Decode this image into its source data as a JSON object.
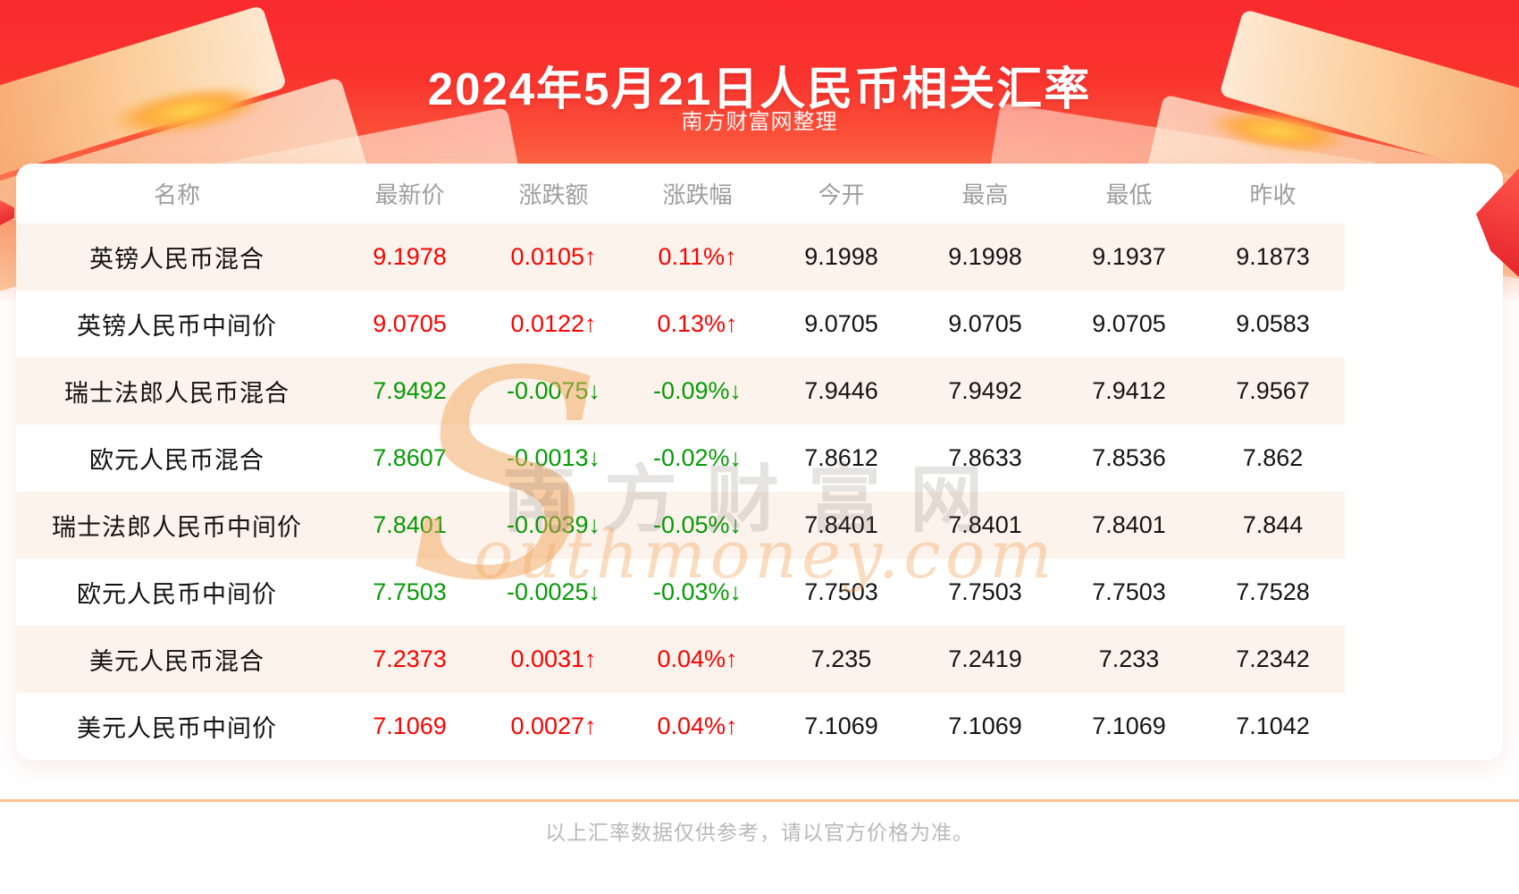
{
  "page": {
    "title": "2024年5月21日人民币相关汇率",
    "subtitle": "南方财富网整理",
    "footer_note": "以上汇率数据仅供参考，请以官方价格为准。",
    "watermark_s": "S",
    "watermark_cn": "南方财富网",
    "watermark_en": "outhmoney.com"
  },
  "colors": {
    "hero_red_top": "#fa2a2e",
    "hero_red_bottom": "#fd9a70",
    "up_red": "#f80400",
    "down_green": "#079a07",
    "row_alt_bg": "#fdf3ed",
    "header_text": "#9e9e9e",
    "divider_orange": "#f6c28e"
  },
  "table": {
    "columns": [
      "名称",
      "最新价",
      "涨跌额",
      "涨跌幅",
      "今开",
      "最高",
      "最低",
      "昨收"
    ],
    "rows": [
      {
        "name": "英镑人民币混合",
        "latest": "9.1978",
        "change": "0.0105↑",
        "change_pct": "0.11%↑",
        "open": "9.1998",
        "high": "9.1998",
        "low": "9.1937",
        "prev_close": "9.1873",
        "direction": "up"
      },
      {
        "name": "英镑人民币中间价",
        "latest": "9.0705",
        "change": "0.0122↑",
        "change_pct": "0.13%↑",
        "open": "9.0705",
        "high": "9.0705",
        "low": "9.0705",
        "prev_close": "9.0583",
        "direction": "up"
      },
      {
        "name": "瑞士法郎人民币混合",
        "latest": "7.9492",
        "change": "-0.0075↓",
        "change_pct": "-0.09%↓",
        "open": "7.9446",
        "high": "7.9492",
        "low": "7.9412",
        "prev_close": "7.9567",
        "direction": "down"
      },
      {
        "name": "欧元人民币混合",
        "latest": "7.8607",
        "change": "-0.0013↓",
        "change_pct": "-0.02%↓",
        "open": "7.8612",
        "high": "7.8633",
        "low": "7.8536",
        "prev_close": "7.862",
        "direction": "down"
      },
      {
        "name": "瑞士法郎人民币中间价",
        "latest": "7.8401",
        "change": "-0.0039↓",
        "change_pct": "-0.05%↓",
        "open": "7.8401",
        "high": "7.8401",
        "low": "7.8401",
        "prev_close": "7.844",
        "direction": "down"
      },
      {
        "name": "欧元人民币中间价",
        "latest": "7.7503",
        "change": "-0.0025↓",
        "change_pct": "-0.03%↓",
        "open": "7.7503",
        "high": "7.7503",
        "low": "7.7503",
        "prev_close": "7.7528",
        "direction": "down"
      },
      {
        "name": "美元人民币混合",
        "latest": "7.2373",
        "change": "0.0031↑",
        "change_pct": "0.04%↑",
        "open": "7.235",
        "high": "7.2419",
        "low": "7.233",
        "prev_close": "7.2342",
        "direction": "up"
      },
      {
        "name": "美元人民币中间价",
        "latest": "7.1069",
        "change": "0.0027↑",
        "change_pct": "0.04%↑",
        "open": "7.1069",
        "high": "7.1069",
        "low": "7.1069",
        "prev_close": "7.1042",
        "direction": "up"
      }
    ]
  },
  "chart_data": {
    "type": "table",
    "title": "2024年5月21日人民币相关汇率",
    "columns": [
      "名称",
      "最新价",
      "涨跌额",
      "涨跌幅",
      "今开",
      "最高",
      "最低",
      "昨收"
    ],
    "rows": [
      [
        "英镑人民币混合",
        "9.1978",
        "0.0105↑",
        "0.11%↑",
        "9.1998",
        "9.1998",
        "9.1937",
        "9.1873"
      ],
      [
        "英镑人民币中间价",
        "9.0705",
        "0.0122↑",
        "0.13%↑",
        "9.0705",
        "9.0705",
        "9.0705",
        "9.0583"
      ],
      [
        "瑞士法郎人民币混合",
        "7.9492",
        "-0.0075↓",
        "-0.09%↓",
        "7.9446",
        "7.9492",
        "7.9412",
        "7.9567"
      ],
      [
        "欧元人民币混合",
        "7.8607",
        "-0.0013↓",
        "-0.02%↓",
        "7.8612",
        "7.8633",
        "7.8536",
        "7.862"
      ],
      [
        "瑞士法郎人民币中间价",
        "7.8401",
        "-0.0039↓",
        "-0.05%↓",
        "7.8401",
        "7.8401",
        "7.8401",
        "7.844"
      ],
      [
        "欧元人民币中间价",
        "7.7503",
        "-0.0025↓",
        "-0.03%↓",
        "7.7503",
        "7.7503",
        "7.7503",
        "7.7528"
      ],
      [
        "美元人民币混合",
        "7.2373",
        "0.0031↑",
        "0.04%↑",
        "7.235",
        "7.2419",
        "7.233",
        "7.2342"
      ],
      [
        "美元人民币中间价",
        "7.1069",
        "0.0027↑",
        "0.04%↑",
        "7.1069",
        "7.1069",
        "7.1069",
        "7.1042"
      ]
    ]
  }
}
